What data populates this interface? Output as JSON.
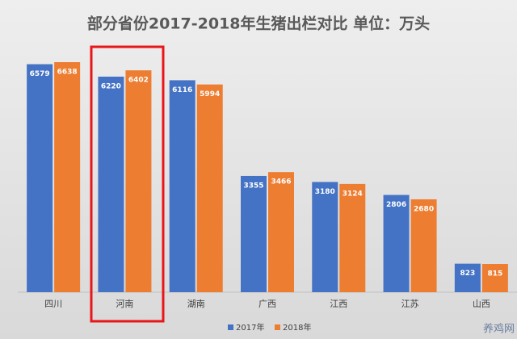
{
  "chart_data": {
    "type": "bar",
    "title": "部分省份2017-2018年生猪出栏对比 单位：万头",
    "categories": [
      "四川",
      "河南",
      "湖南",
      "广西",
      "江西",
      "江苏",
      "山西"
    ],
    "series": [
      {
        "name": "2017年",
        "color": "#4472c4",
        "values": [
          6579,
          6220,
          6116,
          3355,
          3180,
          2806,
          823
        ]
      },
      {
        "name": "2018年",
        "color": "#ed7d31",
        "values": [
          6638,
          6402,
          5994,
          3466,
          3124,
          2680,
          815
        ]
      }
    ],
    "watermark": "养鸡网"
  }
}
